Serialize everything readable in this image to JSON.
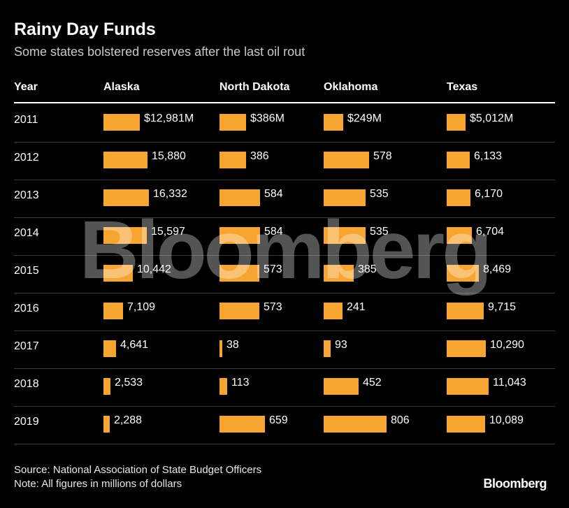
{
  "title": "Rainy Day Funds",
  "subtitle": "Some states bolstered reserves after the last oil rout",
  "columns": [
    "Year",
    "Alaska",
    "North Dakota",
    "Oklahoma",
    "Texas"
  ],
  "watermark": "Bloomberg",
  "source": "Source: National Association of State Budget Officers",
  "note": "Note: All figures in millions of dollars",
  "logo": "Bloomberg",
  "colors": {
    "bar": "#f7a531",
    "background": "#000000",
    "text": "#ffffff"
  },
  "chart_data": {
    "type": "table",
    "units": "millions of dollars",
    "years": [
      "2011",
      "2012",
      "2013",
      "2014",
      "2015",
      "2016",
      "2017",
      "2018",
      "2019"
    ],
    "series": [
      {
        "name": "Alaska",
        "values": [
          12981,
          15880,
          16332,
          15597,
          10442,
          7109,
          4641,
          2533,
          2288
        ],
        "labels": [
          "$12,981M",
          "15,880",
          "16,332",
          "15,597",
          "10,442",
          "7,109",
          "4,641",
          "2,533",
          "2,288"
        ]
      },
      {
        "name": "North Dakota",
        "values": [
          386,
          386,
          584,
          584,
          573,
          573,
          38,
          113,
          659
        ],
        "labels": [
          "$386M",
          "386",
          "584",
          "584",
          "573",
          "573",
          "38",
          "113",
          "659"
        ]
      },
      {
        "name": "Oklahoma",
        "values": [
          249,
          578,
          535,
          535,
          385,
          241,
          93,
          452,
          806
        ],
        "labels": [
          "$249M",
          "578",
          "535",
          "535",
          "385",
          "241",
          "93",
          "452",
          "806"
        ]
      },
      {
        "name": "Texas",
        "values": [
          5012,
          6133,
          6170,
          6704,
          8469,
          9715,
          10290,
          11043,
          10089
        ],
        "labels": [
          "$5,012M",
          "6,133",
          "6,170",
          "6,704",
          "8,469",
          "9,715",
          "10,290",
          "11,043",
          "10,089"
        ]
      }
    ]
  }
}
